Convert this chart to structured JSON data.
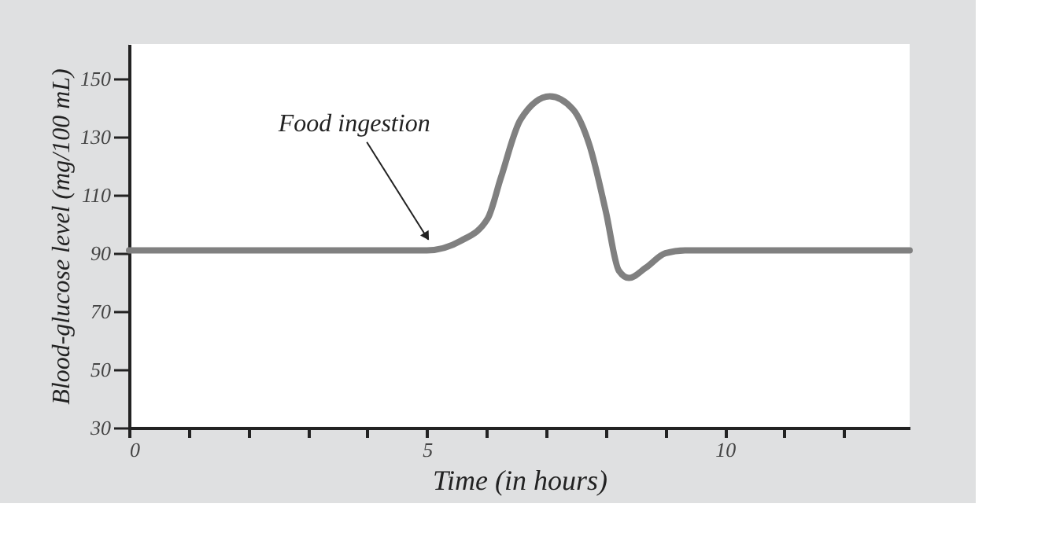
{
  "chart_data": {
    "type": "line",
    "xlabel": "Time (in hours)",
    "ylabel": "Blood-glucose level (mg/100 mL)",
    "x": [
      0,
      5,
      5.57,
      6.02,
      6.24,
      6.57,
      7.06,
      7.45,
      7.73,
      8.0,
      8.22,
      8.39,
      8.67,
      9.0,
      9.33,
      13.1
    ],
    "series": [
      {
        "color": "#808080",
        "values": [
          91,
          91,
          94.3,
          102,
          116,
          136,
          144,
          139.5,
          127,
          104.5,
          84,
          81.5,
          85,
          90,
          91,
          91
        ]
      }
    ],
    "xlim": [
      0,
      13.1
    ],
    "ylim": [
      30,
      162
    ],
    "xticks": [
      0,
      {
        "value": 1,
        "label": null
      },
      {
        "value": 2,
        "label": null
      },
      {
        "value": 3,
        "label": null
      },
      {
        "value": 4,
        "label": null
      },
      5,
      {
        "value": 6,
        "label": null
      },
      {
        "value": 7,
        "label": null
      },
      {
        "value": 8,
        "label": null
      },
      {
        "value": 9,
        "label": null
      },
      10,
      {
        "value": 11,
        "label": null
      },
      {
        "value": 12,
        "label": null
      }
    ],
    "yticks": [
      30,
      50,
      70,
      90,
      110,
      130,
      150
    ],
    "annotations": [
      {
        "text": "Food ingestion",
        "x": 5.1,
        "y": 92
      }
    ],
    "grid": false,
    "marker": "none",
    "line_style": "solid"
  }
}
